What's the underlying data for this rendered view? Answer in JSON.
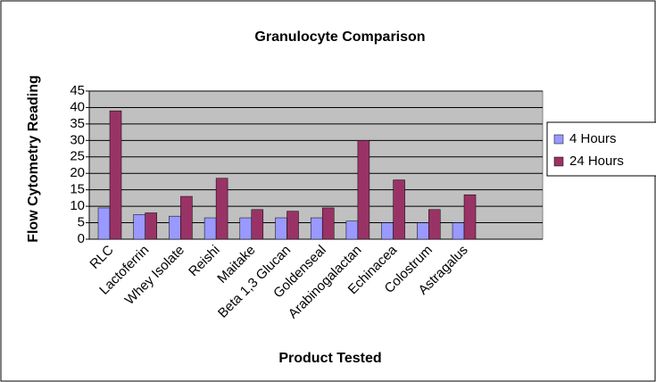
{
  "chart_data": {
    "type": "bar",
    "title": "Granulocyte Comparison",
    "x_label": "Product Tested",
    "y_label": "Flow Cytometry Reading",
    "categories": [
      "RLC",
      "Lactoferrin",
      "Whey Isolate",
      "Reishi",
      "Maitake",
      "Beta 1,3 Glucan",
      "Goldenseal",
      "Arabinogalactan",
      "Echinacea",
      "Colostrum",
      "Astragalus"
    ],
    "series": [
      {
        "name": "4 Hours",
        "color": "#9999ff",
        "values": [
          9.5,
          7.5,
          7,
          6.5,
          6.5,
          6.5,
          6.5,
          5.5,
          5,
          5,
          5
        ]
      },
      {
        "name": "24 Hours",
        "color": "#993366",
        "values": [
          39,
          8,
          13,
          18.5,
          9,
          8.5,
          9.5,
          30,
          18,
          9,
          13.5
        ]
      }
    ],
    "ylim": [
      0,
      45
    ],
    "yticks": [
      0,
      5,
      10,
      15,
      20,
      25,
      30,
      35,
      40,
      45
    ],
    "grid": true,
    "legend": "right"
  }
}
